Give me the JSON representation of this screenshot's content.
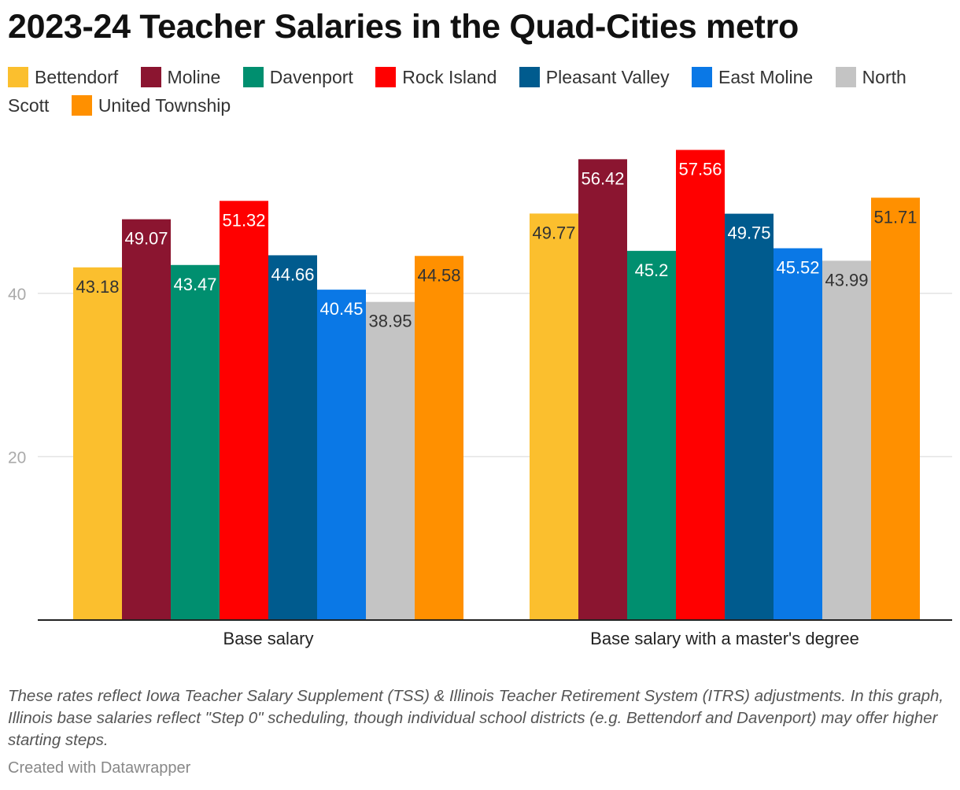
{
  "title": "2023-24 Teacher Salaries in the Quad-Cities metro",
  "legend": [
    {
      "label": "Bettendorf",
      "color": "#fbbf2e"
    },
    {
      "label": "Moline",
      "color": "#8b1530"
    },
    {
      "label": "Davenport",
      "color": "#008f6f"
    },
    {
      "label": "Rock Island",
      "color": "#ff0000"
    },
    {
      "label": "Pleasant Valley",
      "color": "#005b8e"
    },
    {
      "label": "East Moline",
      "color": "#0a78e6"
    },
    {
      "label": "North Scott",
      "color": "#c4c4c4"
    },
    {
      "label": "United Township",
      "color": "#ff9000"
    }
  ],
  "chart_data": {
    "type": "bar",
    "categories": [
      "Base salary",
      "Base salary with a master's degree"
    ],
    "series": [
      {
        "name": "Bettendorf",
        "color": "#fbbf2e",
        "label_color": "#333333",
        "values": [
          43.18,
          49.77
        ]
      },
      {
        "name": "Moline",
        "color": "#8b1530",
        "label_color": "#ffffff",
        "values": [
          49.07,
          56.42
        ]
      },
      {
        "name": "Davenport",
        "color": "#008f6f",
        "label_color": "#ffffff",
        "values": [
          43.47,
          45.2
        ]
      },
      {
        "name": "Rock Island",
        "color": "#ff0000",
        "label_color": "#ffffff",
        "values": [
          51.32,
          57.56
        ]
      },
      {
        "name": "Pleasant Valley",
        "color": "#005b8e",
        "label_color": "#ffffff",
        "values": [
          44.66,
          49.75
        ]
      },
      {
        "name": "East Moline",
        "color": "#0a78e6",
        "label_color": "#ffffff",
        "values": [
          40.45,
          45.52
        ]
      },
      {
        "name": "North Scott",
        "color": "#c4c4c4",
        "label_color": "#333333",
        "values": [
          38.95,
          43.99
        ]
      },
      {
        "name": "United Township",
        "color": "#ff9000",
        "label_color": "#333333",
        "values": [
          44.58,
          51.71
        ]
      }
    ],
    "yticks": [
      20,
      40
    ],
    "ylim": [
      0,
      60
    ],
    "grid": true,
    "xlabel": "",
    "ylabel": ""
  },
  "notes": "These rates reflect Iowa Teacher Salary Supplement (TSS) & Illinois Teacher Retirement System (ITRS) adjustments. In this graph, Illinois base salaries reflect \"Step 0\" scheduling, though individual school districts (e.g. Bettendorf and Davenport) may offer higher starting steps.",
  "credit": "Created with Datawrapper"
}
